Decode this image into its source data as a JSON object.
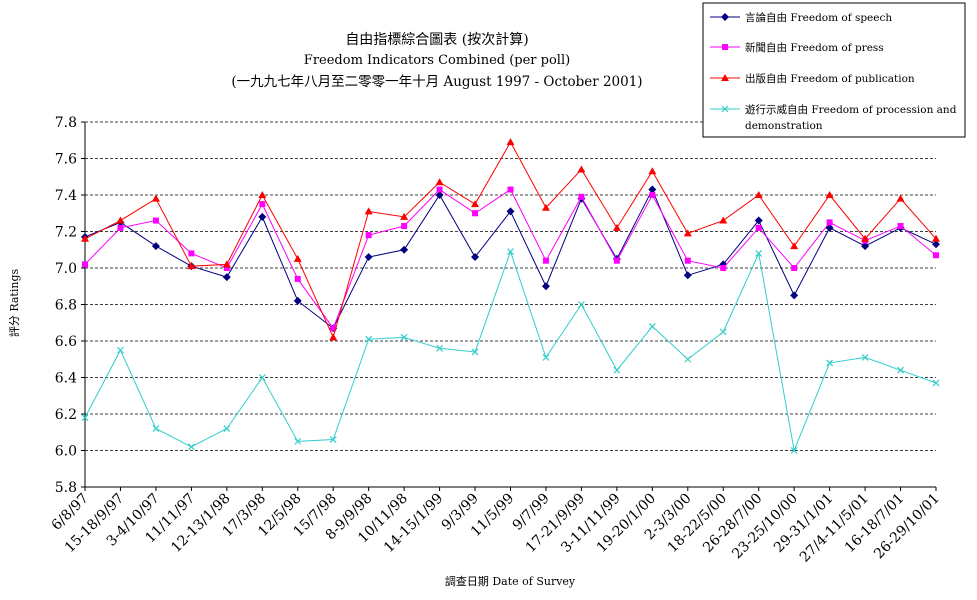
{
  "chart_data": {
    "type": "line",
    "title": "自由指標綜合圖表 (按次計算)",
    "subtitle": "Freedom Indicators Combined (per poll)",
    "subtitle2": "(一九九七年八月至二零零一年十月 August 1997 - October 2001)",
    "xlabel": "調查日期 Date of Survey",
    "ylabel": "評分 Ratings",
    "ylim": [
      5.8,
      7.8
    ],
    "yticks": [
      "5.8",
      "6.0",
      "6.2",
      "6.4",
      "6.6",
      "6.8",
      "7.0",
      "7.2",
      "7.4",
      "7.6",
      "7.8"
    ],
    "grid": true,
    "legend_position": "top-right",
    "x_labels": [
      "6/8/97",
      "15-18/9/97",
      "3-4/10/97",
      "11/11/97",
      "12-13/1/98",
      "17/3/98",
      "12/5/98",
      "15/7/98",
      "8-9/9/98",
      "10/11/98",
      "14-15/1/99",
      "9/3/99",
      "11/5/99",
      "9/7/99",
      "17-21/9/99",
      "3-11/11/99",
      "19-20/1/00",
      "2-3/3/00",
      "18-22/5/00",
      "26-28/7/00",
      "23-25/10/00",
      "29-31/1/01",
      "27/4-11/5/01",
      "16-18/7/01",
      "26-29/10/01"
    ],
    "series": [
      {
        "name": "言論自由 Freedom of speech",
        "color": "#000080",
        "marker": "diamond",
        "values": [
          7.17,
          7.25,
          7.12,
          7.01,
          6.95,
          7.28,
          6.82,
          6.67,
          7.06,
          7.1,
          7.4,
          7.06,
          7.31,
          6.9,
          7.38,
          7.05,
          7.43,
          6.96,
          7.02,
          7.26,
          6.85,
          7.22,
          7.12,
          7.22,
          7.13
        ]
      },
      {
        "name": "新聞自由 Freedom of press",
        "color": "#ff00ff",
        "marker": "square",
        "values": [
          7.02,
          7.22,
          7.26,
          7.08,
          7.0,
          7.35,
          6.94,
          6.67,
          7.18,
          7.23,
          7.43,
          7.3,
          7.43,
          7.04,
          7.39,
          7.04,
          7.4,
          7.04,
          7.0,
          7.22,
          7.0,
          7.25,
          7.15,
          7.23,
          7.07
        ]
      },
      {
        "name": "出版自由 Freedom of publication",
        "color": "#ff0000",
        "marker": "triangle",
        "values": [
          7.16,
          7.26,
          7.38,
          7.01,
          7.02,
          7.4,
          7.05,
          6.62,
          7.31,
          7.28,
          7.47,
          7.35,
          7.69,
          7.33,
          7.54,
          7.22,
          7.53,
          7.19,
          7.26,
          7.4,
          7.12,
          7.4,
          7.16,
          7.38,
          7.16
        ]
      },
      {
        "name": "遊行示威自由 Freedom of procession and demonstration",
        "color": "#33cccc",
        "marker": "x",
        "values": [
          6.18,
          6.55,
          6.12,
          6.02,
          6.12,
          6.4,
          6.05,
          6.06,
          6.61,
          6.62,
          6.56,
          6.54,
          7.09,
          6.51,
          6.8,
          6.44,
          6.68,
          6.5,
          6.65,
          7.08,
          6.0,
          6.48,
          6.51,
          6.44,
          6.37
        ]
      }
    ]
  }
}
